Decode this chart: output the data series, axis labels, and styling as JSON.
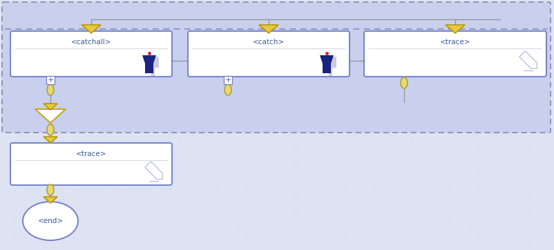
{
  "bg_color": "#dde3f3",
  "bg_inner_color": "#c8d0ee",
  "box_fill": "#ffffff",
  "box_border": "#7986cb",
  "box_bg": "#eef0fa",
  "dashed_color": "#8888aa",
  "gray_line": "#999999",
  "arrow_fill": "#e8c840",
  "arrow_edge": "#b8980a",
  "connector_fill": "#e8d870",
  "connector_edge": "#b0a040",
  "join_fill": "#ffffff",
  "join_edge": "#c8a820",
  "end_border": "#7986cb",
  "text_color": "#3a5a9a",
  "funnel_dark": "#1a237e",
  "funnel_gray": "#aaaacc",
  "pencil_color": "#8898cc",
  "grid_color": "#c8cce8",
  "catchall_label": "<catchall>",
  "catch_label": "<catch>",
  "trace1_label": "<trace>",
  "trace2_label": "<trace>",
  "end_label": "<end>"
}
